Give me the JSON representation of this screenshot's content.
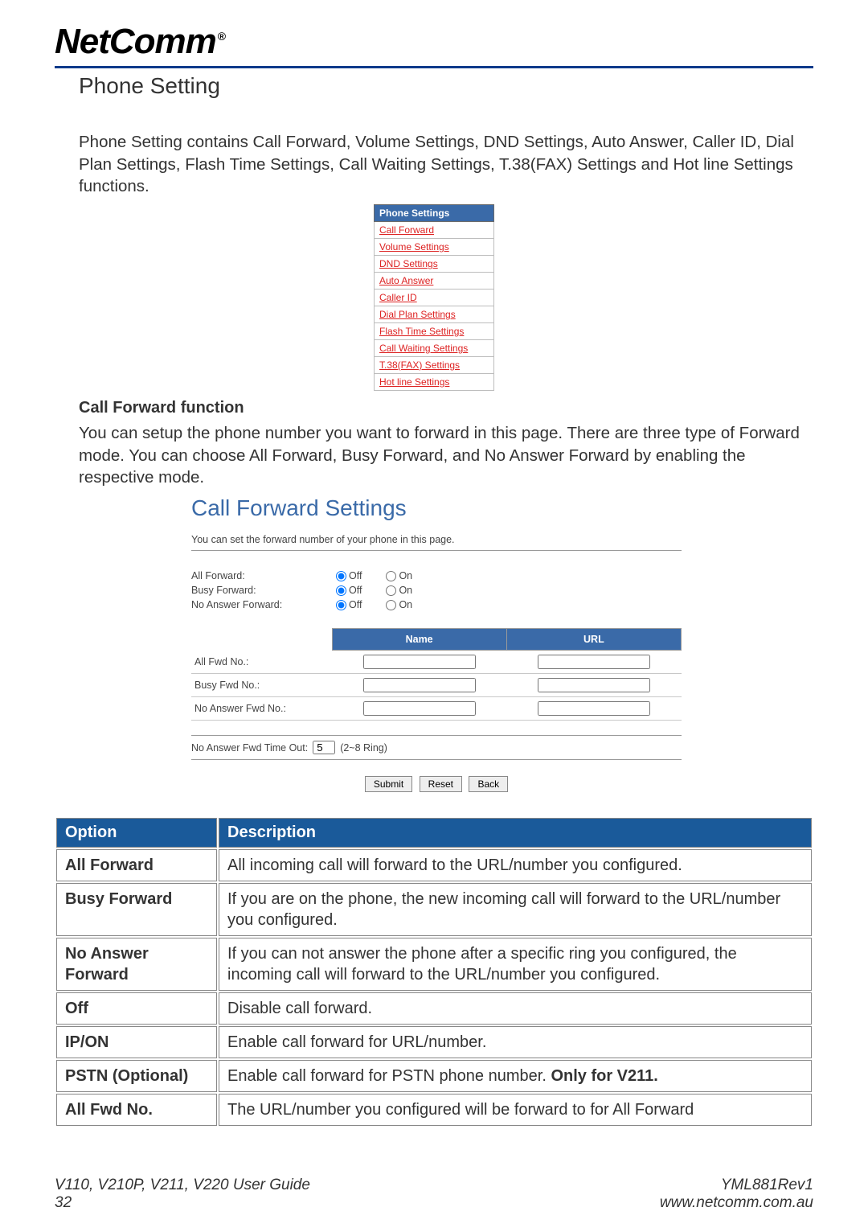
{
  "logo_text": "NetComm",
  "logo_reg": "®",
  "section_title": "Phone Setting",
  "intro_text": "Phone Setting contains Call Forward, Volume Settings, DND Settings, Auto Answer, Caller ID, Dial Plan Settings, Flash Time Settings, Call Waiting Settings, T.38(FAX) Settings and Hot line Settings functions.",
  "ps_header": "Phone Settings",
  "ps_items": [
    "Call Forward",
    "Volume Settings",
    "DND Settings",
    "Auto Answer",
    "Caller ID",
    "Dial Plan Settings",
    "Flash Time Settings",
    "Call Waiting Settings",
    "T.38(FAX) Settings",
    "Hot line Settings"
  ],
  "cf_heading": "Call Forward function",
  "cf_text": "You can setup the phone number you want to forward in this page. There are three type of Forward mode. You can choose All Forward, Busy Forward, and No Answer Forward by enabling the respective mode.",
  "cfs_title": "Call Forward Settings",
  "cfs_desc": "You can set the forward number of your phone in this page.",
  "cfs_rows": [
    {
      "label": "All Forward:",
      "off": "Off",
      "on": "On"
    },
    {
      "label": "Busy Forward:",
      "off": "Off",
      "on": "On"
    },
    {
      "label": "No Answer Forward:",
      "off": "Off",
      "on": "On"
    }
  ],
  "cfs_th_name": "Name",
  "cfs_th_url": "URL",
  "cfs_fwd_rows": [
    "All Fwd No.:",
    "Busy Fwd No.:",
    "No Answer Fwd No.:"
  ],
  "cfs_timeout_label": "No Answer Fwd Time Out:",
  "cfs_timeout_value": "5",
  "cfs_timeout_hint": "(2~8 Ring)",
  "cfs_btn_submit": "Submit",
  "cfs_btn_reset": "Reset",
  "cfs_btn_back": "Back",
  "desc_th_option": "Option",
  "desc_th_desc": "Description",
  "desc_rows": [
    {
      "opt": "All Forward",
      "bold": true,
      "desc": "All incoming call will forward to the URL/number you configured."
    },
    {
      "opt": "Busy Forward",
      "bold": true,
      "desc": "If you are on the phone, the new incoming call will forward to the URL/number you configured."
    },
    {
      "opt": "No Answer Forward",
      "bold": true,
      "desc": "If you can not answer the phone after a specific ring you configured, the incoming call will forward to the URL/number you configured."
    },
    {
      "opt": "Off",
      "bold": true,
      "desc": "Disable call forward."
    },
    {
      "opt": "IP/ON",
      "bold": true,
      "desc": "Enable call forward for URL/number."
    },
    {
      "opt": "PSTN (Optional)",
      "bold": true,
      "desc_html": "Enable call forward for PSTN phone number. <b>Only for V211.</b>"
    },
    {
      "opt": "All Fwd No.",
      "bold": true,
      "desc": "The URL/number you configured will be forward to for All Forward"
    }
  ],
  "footer_left_1": "V110, V210P, V211, V220 User Guide",
  "footer_left_2": "32",
  "footer_right_1": "YML881Rev1",
  "footer_right_2": "www.netcomm.com.au",
  "colors": {
    "hr_blue": "#0a3a8a",
    "table_header_bg": "#1a5a9a",
    "table_header_fg": "#ffffff",
    "ps_header_bg": "#3a6aa8",
    "link_color": "#d22"
  }
}
